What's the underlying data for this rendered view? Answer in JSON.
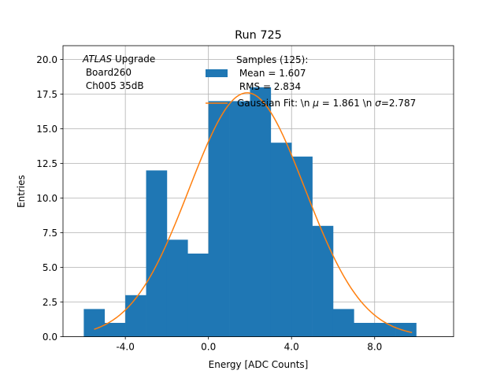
{
  "chart_data": {
    "type": "bar",
    "title": "Run 725",
    "xlabel": "Energy [ADC Counts]",
    "ylabel": "Entries",
    "xlim": [
      -7.0,
      11.8
    ],
    "ylim": [
      0,
      21
    ],
    "grid": true,
    "x_ticks": [
      -4,
      0,
      4,
      8
    ],
    "x_tick_labels": [
      "-4.0",
      "0.0",
      "4.0",
      "8.0"
    ],
    "y_ticks": [
      0,
      2.5,
      5,
      7.5,
      10,
      12.5,
      15,
      17.5,
      20
    ],
    "y_tick_labels": [
      "0.0",
      "2.5",
      "5.0",
      "7.5",
      "10.0",
      "12.5",
      "15.0",
      "17.5",
      "20.0"
    ],
    "bin_edges": [
      -6.0,
      -5.0,
      -4.0,
      -3.0,
      -2.0,
      -1.0,
      0.0,
      1.0,
      2.0,
      3.0,
      4.0,
      5.0,
      6.0,
      7.0,
      8.0,
      9.0,
      10.0
    ],
    "counts": [
      2,
      1,
      3,
      12,
      7,
      6,
      17,
      17,
      18,
      14,
      13,
      8,
      2,
      1,
      1,
      1
    ],
    "series": [
      {
        "name": "Samples (125):\n Mean = 1.607\n RMS = 2.834",
        "kind": "histogram",
        "color": "#1f77b4"
      },
      {
        "name": "Gaussian Fit: \\n $\\mu$ = 1.861 \\n $\\sigma$=2.787",
        "kind": "line",
        "color": "#ff7f0e",
        "amplitude": 17.6,
        "mu": 1.861,
        "sigma": 2.787,
        "x_range": [
          -5.5,
          9.8
        ]
      }
    ],
    "annotation": {
      "italic": "ATLAS",
      "rest": " Upgrade",
      "line2": " Board260",
      "line3": " Ch005 35dB"
    },
    "legend": {
      "hist_lines": [
        "Samples (125):",
        " Mean = 1.607",
        " RMS = 2.834"
      ],
      "fit_prefix": "Gaussian Fit: \\n ",
      "fit_mu_sym": "μ",
      "fit_mid": " = 1.861 \\n ",
      "fit_sigma_sym": "σ",
      "fit_suffix": "=2.787"
    }
  }
}
